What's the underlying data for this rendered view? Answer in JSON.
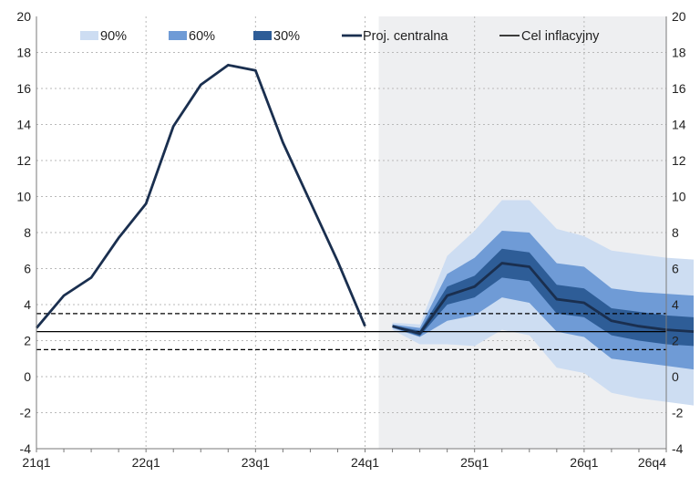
{
  "chart_data": {
    "type": "area",
    "x_tick_labels": [
      "21q1",
      "22q1",
      "23q1",
      "24q1",
      "25q1",
      "26q1",
      "26q4"
    ],
    "ylim": [
      -4,
      20
    ],
    "y_ticks": [
      -4,
      -2,
      0,
      2,
      4,
      6,
      8,
      10,
      12,
      14,
      16,
      18,
      20
    ],
    "grid": true,
    "legend_position": "top",
    "legend": [
      {
        "label": "90%",
        "kind": "band",
        "color": "#cdddf2"
      },
      {
        "label": "60%",
        "kind": "band",
        "color": "#6f9bd6"
      },
      {
        "label": "30%",
        "kind": "band",
        "color": "#2e5d97"
      },
      {
        "label": "Proj. centralna",
        "kind": "line",
        "color": "#1a2f4f"
      },
      {
        "label": "Cel inflacyjny",
        "kind": "line",
        "color": "#000000"
      }
    ],
    "quarters": [
      "21q1",
      "21q2",
      "21q3",
      "21q4",
      "22q1",
      "22q2",
      "22q3",
      "22q4",
      "23q1",
      "23q2",
      "23q3",
      "23q4",
      "24q1",
      "24q2",
      "24q3",
      "24q4",
      "25q1",
      "25q2",
      "25q3",
      "25q4",
      "26q1",
      "26q2",
      "26q3",
      "26q4"
    ],
    "historical_values": [
      2.7,
      4.5,
      5.5,
      7.7,
      9.6,
      13.9,
      16.2,
      17.3,
      17.0,
      13.0,
      9.7,
      6.4,
      2.8
    ],
    "projection_start": "24q2",
    "central_projection": [
      2.8,
      2.4,
      4.5,
      5.0,
      6.3,
      6.1,
      4.3,
      4.1,
      3.1,
      2.8,
      2.6,
      2.5
    ],
    "fan_bands": {
      "band_90": {
        "upper": [
          3.0,
          2.9,
          6.7,
          8.1,
          9.8,
          9.8,
          8.2,
          7.8,
          7.0,
          6.8,
          6.6,
          6.5
        ],
        "lower": [
          2.6,
          1.8,
          1.8,
          1.7,
          2.6,
          2.3,
          0.5,
          0.2,
          -0.9,
          -1.2,
          -1.4,
          -1.6
        ]
      },
      "band_60": {
        "upper": [
          2.9,
          2.7,
          5.7,
          6.6,
          8.1,
          8.0,
          6.3,
          6.1,
          4.9,
          4.7,
          4.6,
          4.5
        ],
        "lower": [
          2.7,
          2.2,
          3.1,
          3.4,
          4.4,
          4.1,
          2.5,
          2.2,
          1.0,
          0.8,
          0.6,
          0.4
        ]
      },
      "band_30": {
        "upper": [
          2.85,
          2.55,
          5.0,
          5.6,
          7.1,
          6.9,
          5.1,
          4.9,
          3.8,
          3.6,
          3.4,
          3.3
        ],
        "lower": [
          2.75,
          2.25,
          4.0,
          4.4,
          5.5,
          5.3,
          3.5,
          3.3,
          2.3,
          2.0,
          1.8,
          1.7
        ]
      }
    },
    "inflation_target": 2.5,
    "tolerance_band": [
      1.5,
      3.5
    ],
    "shaded_region_start": "24q2"
  }
}
